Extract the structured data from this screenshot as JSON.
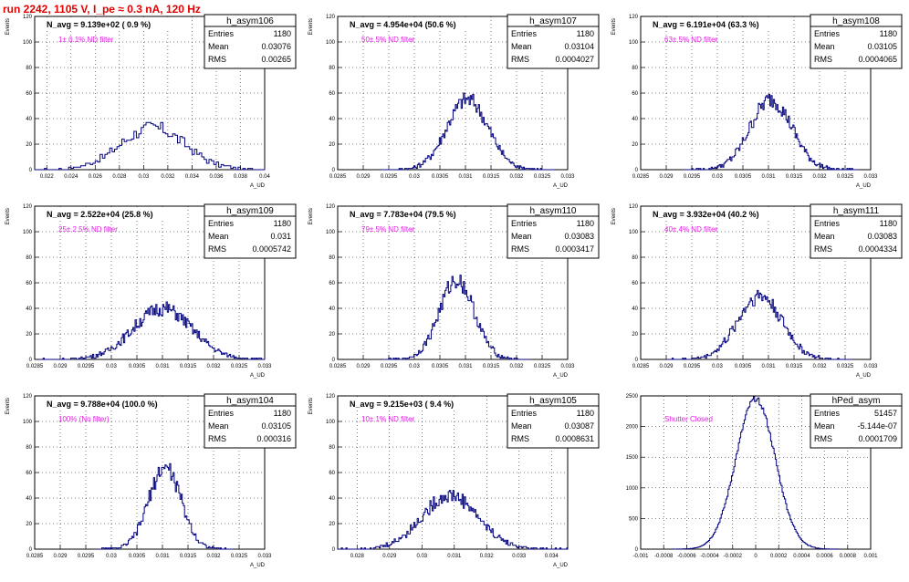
{
  "page_title": "run 2242,  1105 V, I_pe ≈ 0.3 nA, 120 Hz",
  "stats_labels": {
    "entries": "Entries",
    "mean": "Mean",
    "rms": "RMS"
  },
  "colors": {
    "histogram": "#00007f",
    "annotation": "#e020e0",
    "title_red": "#e00000",
    "grid": "#000000"
  },
  "chart_data": [
    {
      "type": "histogram",
      "name": "h_asym106",
      "navg": "N_avg = 9.139e+02 ( 0.9 %)",
      "annotation": "1± 0.1% ND filter",
      "stats": {
        "entries": "1180",
        "mean": "0.03076",
        "rms": "0.00265"
      },
      "ylabel": "Events",
      "xlabel": "A_UD",
      "xlim": [
        0.021,
        0.04
      ],
      "ylim": [
        0,
        120
      ],
      "xticks": [
        "0.022",
        "0.024",
        "0.026",
        "0.028",
        "0.03",
        "0.032",
        "0.034",
        "0.036",
        "0.038",
        "0.04"
      ],
      "xtick_values": [
        0.022,
        0.024,
        0.026,
        0.028,
        0.03,
        0.032,
        0.034,
        0.036,
        0.038,
        0.04
      ],
      "yticks": [
        "0",
        "20",
        "40",
        "60",
        "80",
        "100",
        "120"
      ],
      "ytick_values": [
        0,
        20,
        40,
        60,
        80,
        100,
        120
      ],
      "mu": 0.03076,
      "sigma": 0.00265,
      "entries": 1180,
      "binw": 0.0002,
      "peak": 33
    },
    {
      "type": "histogram",
      "name": "h_asym107",
      "navg": "N_avg = 4.954e+04 (50.6 %)",
      "annotation": "50± 5% ND filter",
      "stats": {
        "entries": "1180",
        "mean": "0.03104",
        "rms": "0.0004027"
      },
      "ylabel": "Events",
      "xlabel": "A_UD",
      "xlim": [
        0.0285,
        0.033
      ],
      "ylim": [
        0,
        120
      ],
      "xticks": [
        "0.0285",
        "0.029",
        "0.0295",
        "0.03",
        "0.0305",
        "0.031",
        "0.0315",
        "0.032",
        "0.0325",
        "0.033"
      ],
      "xtick_values": [
        0.0285,
        0.029,
        0.0295,
        0.03,
        0.0305,
        0.031,
        0.0315,
        0.032,
        0.0325,
        0.033
      ],
      "yticks": [
        "0",
        "20",
        "40",
        "60",
        "80",
        "100",
        "120"
      ],
      "ytick_values": [
        0,
        20,
        40,
        60,
        80,
        100,
        120
      ],
      "mu": 0.03104,
      "sigma": 0.0004027,
      "entries": 1180,
      "binw": 2.25e-05,
      "peak": 55
    },
    {
      "type": "histogram",
      "name": "h_asym108",
      "navg": "N_avg = 6.191e+04 (63.3 %)",
      "annotation": "63± 5% ND filter",
      "stats": {
        "entries": "1180",
        "mean": "0.03105",
        "rms": "0.0004065"
      },
      "ylabel": "Events",
      "xlabel": "A_UD",
      "xlim": [
        0.0285,
        0.033
      ],
      "ylim": [
        0,
        120
      ],
      "xticks": [
        "0.0285",
        "0.029",
        "0.0295",
        "0.03",
        "0.0305",
        "0.031",
        "0.0315",
        "0.032",
        "0.0325",
        "0.033"
      ],
      "xtick_values": [
        0.0285,
        0.029,
        0.0295,
        0.03,
        0.0305,
        0.031,
        0.0315,
        0.032,
        0.0325,
        0.033
      ],
      "yticks": [
        "0",
        "20",
        "40",
        "60",
        "80",
        "100",
        "120"
      ],
      "ytick_values": [
        0,
        20,
        40,
        60,
        80,
        100,
        120
      ],
      "mu": 0.03105,
      "sigma": 0.0004065,
      "entries": 1180,
      "binw": 2.25e-05,
      "peak": 55
    },
    {
      "type": "histogram",
      "name": "h_asym109",
      "navg": "N_avg = 2.522e+04 (25.8 %)",
      "annotation": "25± 2.5% ND filter",
      "stats": {
        "entries": "1180",
        "mean": "0.031",
        "rms": "0.0005742"
      },
      "ylabel": "Events",
      "xlabel": "A_UD",
      "xlim": [
        0.0285,
        0.033
      ],
      "ylim": [
        0,
        120
      ],
      "xticks": [
        "0.0285",
        "0.029",
        "0.0295",
        "0.03",
        "0.0305",
        "0.031",
        "0.0315",
        "0.032",
        "0.0325",
        "0.033"
      ],
      "xtick_values": [
        0.0285,
        0.029,
        0.0295,
        0.03,
        0.0305,
        0.031,
        0.0315,
        0.032,
        0.0325,
        0.033
      ],
      "yticks": [
        "0",
        "20",
        "40",
        "60",
        "80",
        "100",
        "120"
      ],
      "ytick_values": [
        0,
        20,
        40,
        60,
        80,
        100,
        120
      ],
      "mu": 0.031,
      "sigma": 0.0005742,
      "entries": 1180,
      "binw": 2.25e-05,
      "peak": 40
    },
    {
      "type": "histogram",
      "name": "h_asym110",
      "navg": "N_avg = 7.783e+04 (79.5 %)",
      "annotation": "79± 5% ND filter",
      "stats": {
        "entries": "1180",
        "mean": "0.03083",
        "rms": "0.0003417"
      },
      "ylabel": "Events",
      "xlabel": "A_UD",
      "xlim": [
        0.0285,
        0.033
      ],
      "ylim": [
        0,
        120
      ],
      "xticks": [
        "0.0285",
        "0.029",
        "0.0295",
        "0.03",
        "0.0305",
        "0.031",
        "0.0315",
        "0.032",
        "0.0325",
        "0.033"
      ],
      "xtick_values": [
        0.0285,
        0.029,
        0.0295,
        0.03,
        0.0305,
        0.031,
        0.0315,
        0.032,
        0.0325,
        0.033
      ],
      "yticks": [
        "0",
        "20",
        "40",
        "60",
        "80",
        "100",
        "120"
      ],
      "ytick_values": [
        0,
        20,
        40,
        60,
        80,
        100,
        120
      ],
      "mu": 0.03083,
      "sigma": 0.0003417,
      "entries": 1180,
      "binw": 2.25e-05,
      "peak": 62
    },
    {
      "type": "histogram",
      "name": "h_asym111",
      "navg": "N_avg = 3.932e+04 (40.2 %)",
      "annotation": "40± 4% ND filter",
      "stats": {
        "entries": "1180",
        "mean": "0.03083",
        "rms": "0.0004334"
      },
      "ylabel": "Events",
      "xlabel": "A_UD",
      "xlim": [
        0.0285,
        0.033
      ],
      "ylim": [
        0,
        120
      ],
      "xticks": [
        "0.0285",
        "0.029",
        "0.0295",
        "0.03",
        "0.0305",
        "0.031",
        "0.0315",
        "0.032",
        "0.0325",
        "0.033"
      ],
      "xtick_values": [
        0.0285,
        0.029,
        0.0295,
        0.03,
        0.0305,
        0.031,
        0.0315,
        0.032,
        0.0325,
        0.033
      ],
      "yticks": [
        "0",
        "20",
        "40",
        "60",
        "80",
        "100",
        "120"
      ],
      "ytick_values": [
        0,
        20,
        40,
        60,
        80,
        100,
        120
      ],
      "mu": 0.03083,
      "sigma": 0.0004334,
      "entries": 1180,
      "binw": 2.25e-05,
      "peak": 50
    },
    {
      "type": "histogram",
      "name": "h_asym104",
      "navg": "N_avg = 9.788e+04 (100.0 %)",
      "annotation": "100% (No filter)",
      "stats": {
        "entries": "1180",
        "mean": "0.03105",
        "rms": "0.000316"
      },
      "ylabel": "Events",
      "xlabel": "A_UD",
      "xlim": [
        0.0285,
        0.033
      ],
      "ylim": [
        0,
        120
      ],
      "xticks": [
        "0.0285",
        "0.029",
        "0.0295",
        "0.03",
        "0.0305",
        "0.031",
        "0.0315",
        "0.032",
        "0.0325",
        "0.033"
      ],
      "xtick_values": [
        0.0285,
        0.029,
        0.0295,
        0.03,
        0.0305,
        0.031,
        0.0315,
        0.032,
        0.0325,
        0.033
      ],
      "yticks": [
        "0",
        "20",
        "40",
        "60",
        "80",
        "100",
        "120"
      ],
      "ytick_values": [
        0,
        20,
        40,
        60,
        80,
        100,
        120
      ],
      "mu": 0.03105,
      "sigma": 0.000316,
      "entries": 1180,
      "binw": 2.25e-05,
      "peak": 64
    },
    {
      "type": "histogram",
      "name": "h_asym105",
      "navg": "N_avg = 9.215e+03 ( 9.4 %)",
      "annotation": "10± 1% ND filter",
      "stats": {
        "entries": "1180",
        "mean": "0.03087",
        "rms": "0.0008631"
      },
      "ylabel": "Events",
      "xlabel": "A_UD",
      "xlim": [
        0.0274,
        0.0345
      ],
      "ylim": [
        0,
        120
      ],
      "xticks": [
        "0.028",
        "0.029",
        "0.03",
        "0.031",
        "0.032",
        "0.033",
        "0.034"
      ],
      "xtick_values": [
        0.028,
        0.029,
        0.03,
        0.031,
        0.032,
        0.033,
        0.034
      ],
      "yticks": [
        "0",
        "20",
        "40",
        "60",
        "80",
        "100",
        "120"
      ],
      "ytick_values": [
        0,
        20,
        40,
        60,
        80,
        100,
        120
      ],
      "mu": 0.03087,
      "sigma": 0.0008631,
      "entries": 1180,
      "binw": 3.55e-05,
      "peak": 42
    },
    {
      "type": "histogram",
      "name": "hPed_asym",
      "navg": "",
      "annotation": "Shutter Closed",
      "stats": {
        "entries": "51457",
        "mean": "-5.144e-07",
        "rms": "0.0001709"
      },
      "ylabel": "",
      "xlabel": "",
      "xlim": [
        -0.001,
        0.001
      ],
      "ylim": [
        0,
        2500
      ],
      "xticks": [
        "-0.001",
        "-0.0008",
        "-0.0006",
        "-0.0004",
        "-0.0002",
        "0",
        "0.0002",
        "0.0004",
        "0.0006",
        "0.0008",
        "0.001"
      ],
      "xtick_values": [
        -0.001,
        -0.0008,
        -0.0006,
        -0.0004,
        -0.0002,
        0,
        0.0002,
        0.0004,
        0.0006,
        0.0008,
        0.001
      ],
      "yticks": [
        "0",
        "500",
        "1000",
        "1500",
        "2000",
        "2500"
      ],
      "ytick_values": [
        0,
        500,
        1000,
        1500,
        2000,
        2500
      ],
      "mu": -5e-07,
      "sigma": 0.0001709,
      "entries": 51457,
      "binw": 1e-05,
      "peak": 2450
    }
  ]
}
